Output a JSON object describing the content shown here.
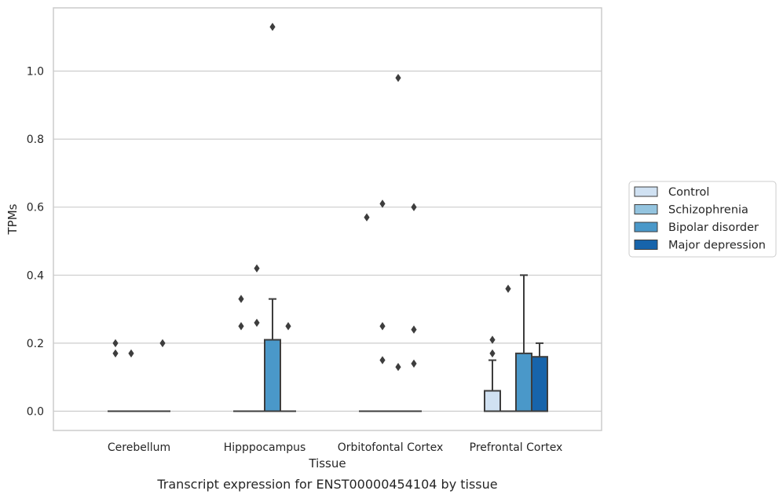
{
  "caption": "Transcript expression for ENST00000454104 by tissue",
  "chart_data": {
    "type": "boxplot",
    "xlabel": "Tissue",
    "ylabel": "TPMs",
    "ylim": [
      -0.055,
      1.19
    ],
    "yticks": [
      "0.0",
      "0.2",
      "0.4",
      "0.6",
      "0.8",
      "1.0"
    ],
    "ytick_values": [
      0.0,
      0.2,
      0.4,
      0.6,
      0.8,
      1.0
    ],
    "grid": "horizontal",
    "legend_position": "right",
    "categories": [
      "Cerebellum",
      "Hipppocampus",
      "Orbitofontal Cortex",
      "Prefrontal Cortex"
    ],
    "series": [
      {
        "name": "Control",
        "color": "#d0e1f2",
        "boxes": [
          {
            "q1": 0,
            "median": 0,
            "q3": 0,
            "whisker_low": 0,
            "whisker_high": 0,
            "outliers": [
              0.2,
              0.17
            ]
          },
          {
            "q1": 0,
            "median": 0,
            "q3": 0,
            "whisker_low": 0,
            "whisker_high": 0,
            "outliers": [
              0.33,
              0.25
            ]
          },
          {
            "q1": 0,
            "median": 0,
            "q3": 0,
            "whisker_low": 0,
            "whisker_high": 0,
            "outliers": [
              0.57
            ]
          },
          {
            "q1": 0,
            "median": 0,
            "q3": 0.06,
            "whisker_low": 0,
            "whisker_high": 0.15,
            "outliers": [
              0.21,
              0.17
            ]
          }
        ]
      },
      {
        "name": "Schizophrenia",
        "color": "#94c4df",
        "boxes": [
          {
            "q1": 0,
            "median": 0,
            "q3": 0,
            "whisker_low": 0,
            "whisker_high": 0,
            "outliers": [
              0.17
            ]
          },
          {
            "q1": 0,
            "median": 0,
            "q3": 0,
            "whisker_low": 0,
            "whisker_high": 0,
            "outliers": [
              0.42,
              0.26
            ]
          },
          {
            "q1": 0,
            "median": 0,
            "q3": 0,
            "whisker_low": 0,
            "whisker_high": 0,
            "outliers": [
              0.61,
              0.25,
              0.15
            ]
          },
          {
            "q1": 0,
            "median": 0,
            "q3": 0,
            "whisker_low": 0,
            "whisker_high": 0,
            "outliers": [
              0.36
            ]
          }
        ]
      },
      {
        "name": "Bipolar disorder",
        "color": "#4a98c9",
        "boxes": [
          {
            "q1": 0,
            "median": 0,
            "q3": 0,
            "whisker_low": 0,
            "whisker_high": 0,
            "outliers": []
          },
          {
            "q1": 0,
            "median": 0,
            "q3": 0.21,
            "whisker_low": 0,
            "whisker_high": 0.33,
            "outliers": [
              1.13
            ]
          },
          {
            "q1": 0,
            "median": 0,
            "q3": 0,
            "whisker_low": 0,
            "whisker_high": 0,
            "outliers": [
              0.98,
              0.13
            ]
          },
          {
            "q1": 0,
            "median": 0,
            "q3": 0.17,
            "whisker_low": 0,
            "whisker_high": 0.4,
            "outliers": []
          }
        ]
      },
      {
        "name": "Major depression",
        "color": "#1764ab",
        "boxes": [
          {
            "q1": 0,
            "median": 0,
            "q3": 0,
            "whisker_low": 0,
            "whisker_high": 0,
            "outliers": [
              0.2
            ]
          },
          {
            "q1": 0,
            "median": 0,
            "q3": 0,
            "whisker_low": 0,
            "whisker_high": 0,
            "outliers": [
              0.25
            ]
          },
          {
            "q1": 0,
            "median": 0,
            "q3": 0,
            "whisker_low": 0,
            "whisker_high": 0,
            "outliers": [
              0.6,
              0.24,
              0.14
            ]
          },
          {
            "q1": 0,
            "median": 0,
            "q3": 0.16,
            "whisker_low": 0,
            "whisker_high": 0.2,
            "outliers": []
          }
        ]
      }
    ]
  }
}
